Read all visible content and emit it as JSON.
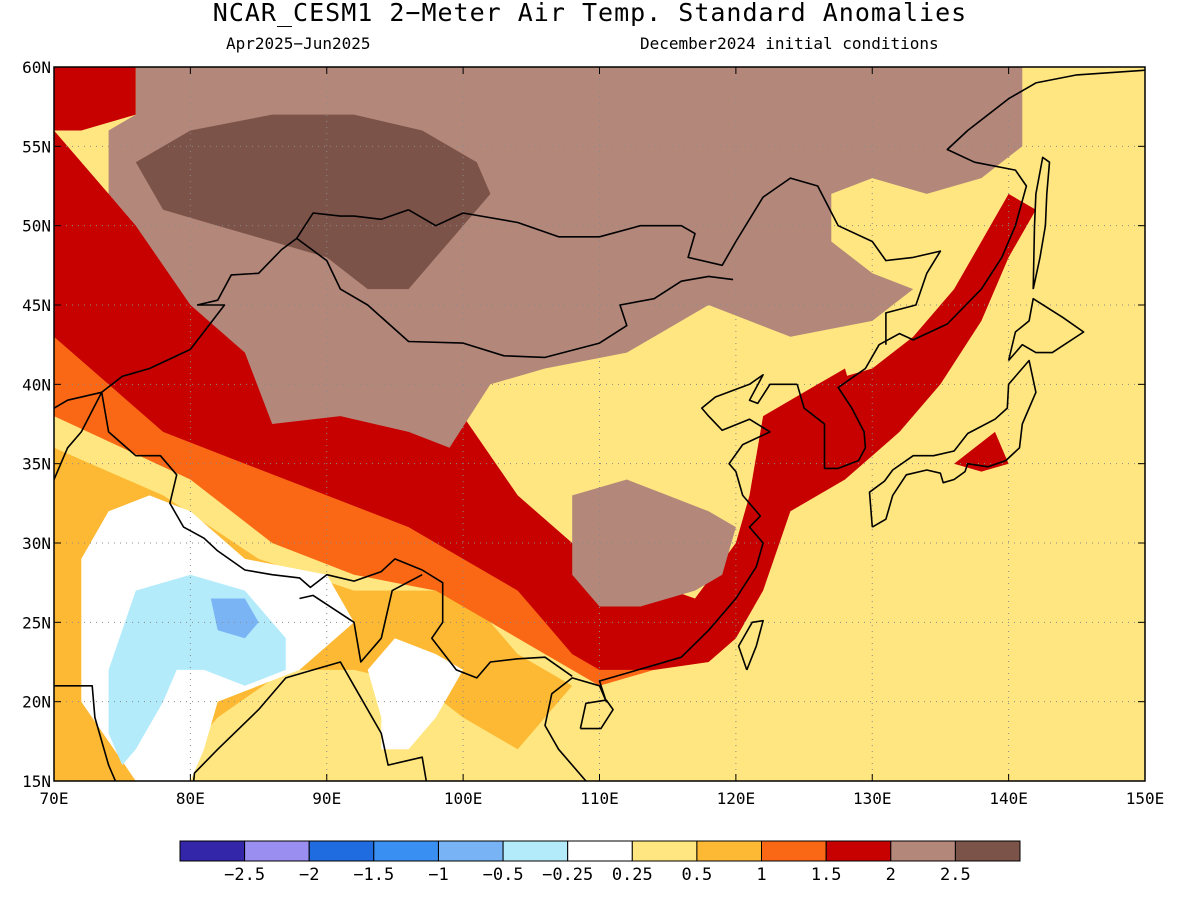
{
  "header": {
    "title": "NCAR_CESM1 2−Meter Air Temp. Standard Anomalies",
    "period": "Apr2025−Jun2025",
    "initial_conditions": "December2024 initial conditions"
  },
  "map": {
    "lon_range": [
      70,
      150
    ],
    "lat_range": [
      15,
      60
    ],
    "lon_ticks": [
      "70E",
      "80E",
      "90E",
      "100E",
      "110E",
      "120E",
      "130E",
      "140E",
      "150E"
    ],
    "lat_ticks": [
      "15N",
      "20N",
      "25N",
      "30N",
      "35N",
      "40N",
      "45N",
      "50N",
      "55N",
      "60N"
    ],
    "gridlines": true,
    "background_category": "0.25 to 0.5",
    "coastline_color": "#000000",
    "regions": [
      {
        "category": "0.5 to 1",
        "color": "#fdb933",
        "lon_lat": [
          [
            70,
            36
          ],
          [
            78,
            33
          ],
          [
            85,
            29
          ],
          [
            92,
            27
          ],
          [
            100,
            27
          ],
          [
            104,
            23
          ],
          [
            108,
            21
          ],
          [
            104,
            17
          ],
          [
            100,
            19
          ],
          [
            97,
            21
          ],
          [
            92,
            22
          ],
          [
            87,
            22
          ],
          [
            82,
            19
          ],
          [
            80,
            17
          ],
          [
            76,
            15
          ],
          [
            70,
            15
          ]
        ]
      },
      {
        "category": "-0.25 to 0.25",
        "color": "#ffffff",
        "lon_lat": [
          [
            74,
            32
          ],
          [
            77,
            33
          ],
          [
            80,
            32
          ],
          [
            84,
            29
          ],
          [
            90,
            28
          ],
          [
            92,
            25
          ],
          [
            88,
            22
          ],
          [
            85,
            21
          ],
          [
            82,
            20
          ],
          [
            81,
            17
          ],
          [
            80,
            15
          ],
          [
            76,
            15
          ],
          [
            72,
            20
          ],
          [
            72,
            25
          ],
          [
            72,
            29
          ]
        ]
      },
      {
        "category": "-0.25 to 0.25",
        "color": "#ffffff",
        "lon_lat": [
          [
            95,
            24
          ],
          [
            98,
            23
          ],
          [
            100,
            22
          ],
          [
            98,
            19
          ],
          [
            96,
            17
          ],
          [
            94,
            17
          ],
          [
            94,
            19
          ],
          [
            93,
            22
          ]
        ]
      },
      {
        "category": "-0.5 to -0.25",
        "color": "#b3ebfb",
        "lon_lat": [
          [
            76,
            27
          ],
          [
            80,
            28
          ],
          [
            84,
            27
          ],
          [
            87,
            24
          ],
          [
            87,
            22
          ],
          [
            84,
            21
          ],
          [
            81,
            22
          ],
          [
            79,
            22
          ],
          [
            78,
            20
          ],
          [
            76,
            17
          ],
          [
            75,
            16
          ],
          [
            74,
            18
          ],
          [
            74,
            22
          ]
        ]
      },
      {
        "category": "-1 to -0.5",
        "color": "#7ab4f5",
        "lon_lat": [
          [
            81.5,
            26.5
          ],
          [
            84,
            26.5
          ],
          [
            85,
            25
          ],
          [
            84,
            24
          ],
          [
            82,
            24.5
          ]
        ]
      },
      {
        "category": "1 to 1.5",
        "color": "#fa6815",
        "lon_lat": [
          [
            70,
            51
          ],
          [
            74,
            48
          ],
          [
            80,
            42
          ],
          [
            86,
            38
          ],
          [
            92,
            36
          ],
          [
            98,
            34
          ],
          [
            104,
            32
          ],
          [
            108,
            29
          ],
          [
            112,
            27
          ],
          [
            117,
            26
          ],
          [
            120,
            24
          ],
          [
            118,
            22.5
          ],
          [
            114,
            22
          ],
          [
            110,
            21
          ],
          [
            106,
            23
          ],
          [
            102,
            25
          ],
          [
            98,
            27
          ],
          [
            92,
            28
          ],
          [
            86,
            30
          ],
          [
            80,
            34
          ],
          [
            75,
            36
          ],
          [
            70,
            38
          ]
        ]
      },
      {
        "category": "1.5 to 2",
        "color": "#c70000",
        "lon_lat": [
          [
            70,
            56
          ],
          [
            74,
            52
          ],
          [
            80,
            50
          ],
          [
            86,
            46
          ],
          [
            92,
            42
          ],
          [
            96,
            39
          ],
          [
            100,
            38
          ],
          [
            104,
            33
          ],
          [
            108,
            30
          ],
          [
            112,
            28
          ],
          [
            117,
            26.5
          ],
          [
            120,
            30
          ],
          [
            121,
            33
          ],
          [
            122,
            38
          ],
          [
            126,
            40
          ],
          [
            130,
            41
          ],
          [
            133,
            43
          ],
          [
            136,
            46
          ],
          [
            138,
            49
          ],
          [
            140,
            52
          ],
          [
            142,
            51
          ],
          [
            140,
            48
          ],
          [
            138,
            44
          ],
          [
            135,
            40
          ],
          [
            132,
            37
          ],
          [
            128,
            34
          ],
          [
            124,
            32
          ],
          [
            122,
            27
          ],
          [
            120,
            24
          ],
          [
            118,
            22.5
          ],
          [
            114,
            22
          ],
          [
            110,
            22
          ],
          [
            108,
            23
          ],
          [
            106,
            25
          ],
          [
            104,
            27
          ],
          [
            100,
            29
          ],
          [
            96,
            31
          ],
          [
            90,
            33
          ],
          [
            84,
            35
          ],
          [
            78,
            37
          ],
          [
            74,
            40
          ],
          [
            70,
            43
          ]
        ]
      },
      {
        "category": "1.5 to 2",
        "color": "#c70000",
        "lon_lat": [
          [
            70,
            60
          ],
          [
            76,
            60
          ],
          [
            76,
            57
          ],
          [
            72,
            56
          ],
          [
            70,
            56
          ]
        ]
      },
      {
        "category": "1.5 to 2",
        "color": "#c70000",
        "lon_lat": [
          [
            126,
            40
          ],
          [
            128,
            41
          ],
          [
            129,
            38
          ],
          [
            128,
            35
          ],
          [
            126,
            35
          ]
        ]
      },
      {
        "category": "1.5 to 2",
        "color": "#c70000",
        "lon_lat": [
          [
            136,
            35
          ],
          [
            139,
            37
          ],
          [
            140,
            35
          ],
          [
            138,
            34.5
          ]
        ]
      },
      {
        "category": "2 to 2.5",
        "color": "#b3877a",
        "lon_lat": [
          [
            70,
            60
          ],
          [
            141,
            60
          ],
          [
            141,
            55
          ],
          [
            138,
            53
          ],
          [
            134,
            52
          ],
          [
            130,
            53
          ],
          [
            127,
            52
          ],
          [
            127,
            49
          ],
          [
            130,
            47
          ],
          [
            133,
            46
          ],
          [
            130,
            44
          ],
          [
            124,
            43
          ],
          [
            118,
            45
          ],
          [
            112,
            42
          ],
          [
            106,
            41
          ],
          [
            102,
            40
          ],
          [
            99,
            36
          ],
          [
            96,
            37
          ],
          [
            91,
            38
          ],
          [
            86,
            37.5
          ],
          [
            84,
            42
          ],
          [
            80,
            45
          ],
          [
            76,
            50
          ],
          [
            74,
            52
          ],
          [
            74,
            56
          ],
          [
            76,
            57
          ],
          [
            76,
            60
          ]
        ]
      },
      {
        "category": "2 to 2.5",
        "color": "#b3877a",
        "lon_lat": [
          [
            108,
            33
          ],
          [
            112,
            34
          ],
          [
            115,
            33
          ],
          [
            118,
            32
          ],
          [
            120,
            31
          ],
          [
            119,
            28
          ],
          [
            117,
            27
          ],
          [
            113,
            26
          ],
          [
            110,
            26
          ],
          [
            108,
            28
          ]
        ]
      },
      {
        "category": "2.5 and above",
        "color": "#7c5348",
        "lon_lat": [
          [
            76,
            54
          ],
          [
            80,
            56
          ],
          [
            86,
            57
          ],
          [
            92,
            57
          ],
          [
            97,
            56
          ],
          [
            101,
            54
          ],
          [
            102,
            52
          ],
          [
            100,
            50
          ],
          [
            98,
            48
          ],
          [
            96,
            46
          ],
          [
            93,
            46
          ],
          [
            90,
            48
          ],
          [
            86,
            49
          ],
          [
            82,
            50
          ],
          [
            78,
            51
          ]
        ]
      }
    ],
    "labels": []
  },
  "colorbar": {
    "tick_labels": [
      "−2.5",
      "−2",
      "−1.5",
      "−1",
      "−0.5",
      "−0.25",
      "0.25",
      "0.5",
      "1",
      "1.5",
      "2",
      "2.5"
    ],
    "colors": [
      "#3326a8",
      "#9a8ff0",
      "#1f6be0",
      "#3a90f2",
      "#78b3f5",
      "#b3ebfb",
      "#ffffff",
      "#ffe680",
      "#fdb933",
      "#fa6815",
      "#c70000",
      "#b3877a",
      "#7c5348"
    ]
  }
}
